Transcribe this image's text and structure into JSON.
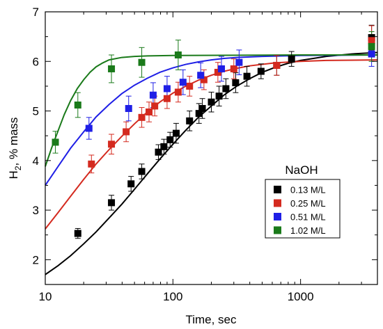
{
  "chart_data": {
    "type": "scatter",
    "xlabel": "Time, sec",
    "ylabel_main": "H",
    "ylabel_sub": "2",
    "ylabel_rest": ", % mass",
    "x_scale": "log",
    "xlim": [
      10,
      4000
    ],
    "ylim": [
      1.5,
      7
    ],
    "x_ticks": [
      10,
      100,
      1000
    ],
    "x_tick_labels": [
      "10",
      "100",
      "1000"
    ],
    "y_ticks": [
      2,
      3,
      4,
      5,
      6,
      7
    ],
    "y_tick_labels": [
      "2",
      "3",
      "4",
      "5",
      "6",
      "7"
    ],
    "grid": false,
    "legend": {
      "title": "NaOH",
      "placement": "bottom-right"
    },
    "series": [
      {
        "name": "0.13 M/L",
        "color": "#000000",
        "points": [
          [
            18,
            2.53,
            0.1
          ],
          [
            33,
            3.15,
            0.15
          ],
          [
            47,
            3.53,
            0.15
          ],
          [
            57,
            3.78,
            0.15
          ],
          [
            77,
            4.17,
            0.15
          ],
          [
            85,
            4.28,
            0.15
          ],
          [
            95,
            4.42,
            0.15
          ],
          [
            106,
            4.55,
            0.2
          ],
          [
            135,
            4.8,
            0.2
          ],
          [
            160,
            4.95,
            0.2
          ],
          [
            170,
            5.05,
            0.2
          ],
          [
            200,
            5.18,
            0.2
          ],
          [
            230,
            5.3,
            0.2
          ],
          [
            260,
            5.45,
            0.2
          ],
          [
            310,
            5.57,
            0.2
          ],
          [
            380,
            5.7,
            0.2
          ],
          [
            490,
            5.8,
            0.15
          ],
          [
            650,
            5.92,
            0.2
          ],
          [
            850,
            6.05,
            0.15
          ],
          [
            3600,
            6.48,
            0.25
          ]
        ],
        "fit": [
          [
            10,
            1.7
          ],
          [
            12.6,
            1.88
          ],
          [
            15.8,
            2.08
          ],
          [
            20,
            2.32
          ],
          [
            25,
            2.56
          ],
          [
            31.6,
            2.84
          ],
          [
            39.8,
            3.12
          ],
          [
            50,
            3.42
          ],
          [
            63,
            3.73
          ],
          [
            79,
            4.03
          ],
          [
            100,
            4.33
          ],
          [
            126,
            4.61
          ],
          [
            158,
            4.87
          ],
          [
            200,
            5.1
          ],
          [
            251,
            5.32
          ],
          [
            316,
            5.5
          ],
          [
            398,
            5.65
          ],
          [
            501,
            5.78
          ],
          [
            631,
            5.88
          ],
          [
            794,
            5.96
          ],
          [
            1000,
            6.02
          ],
          [
            1585,
            6.1
          ],
          [
            2512,
            6.15
          ],
          [
            4000,
            6.18
          ]
        ]
      },
      {
        "name": "0.25 M/L",
        "color": "#d42a1f",
        "points": [
          [
            23,
            3.93,
            0.18
          ],
          [
            33,
            4.33,
            0.2
          ],
          [
            43,
            4.58,
            0.2
          ],
          [
            57,
            4.87,
            0.2
          ],
          [
            65,
            4.98,
            0.2
          ],
          [
            72,
            5.1,
            0.2
          ],
          [
            90,
            5.25,
            0.2
          ],
          [
            110,
            5.38,
            0.2
          ],
          [
            135,
            5.5,
            0.2
          ],
          [
            175,
            5.63,
            0.2
          ],
          [
            225,
            5.78,
            0.2
          ],
          [
            300,
            5.85,
            0.2
          ],
          [
            650,
            5.92,
            0.2
          ],
          [
            3600,
            6.42,
            0.3
          ]
        ],
        "fit": [
          [
            10,
            2.62
          ],
          [
            12.6,
            2.95
          ],
          [
            15.8,
            3.28
          ],
          [
            20,
            3.62
          ],
          [
            25,
            3.93
          ],
          [
            31.6,
            4.22
          ],
          [
            39.8,
            4.49
          ],
          [
            50,
            4.74
          ],
          [
            63,
            4.98
          ],
          [
            79,
            5.18
          ],
          [
            100,
            5.36
          ],
          [
            126,
            5.5
          ],
          [
            158,
            5.62
          ],
          [
            200,
            5.72
          ],
          [
            251,
            5.8
          ],
          [
            316,
            5.86
          ],
          [
            398,
            5.91
          ],
          [
            501,
            5.94
          ],
          [
            631,
            5.97
          ],
          [
            1000,
            6.0
          ],
          [
            1585,
            6.02
          ],
          [
            4000,
            6.03
          ]
        ]
      },
      {
        "name": "0.51 M/L",
        "color": "#1f1fe6",
        "points": [
          [
            22,
            4.65,
            0.22
          ],
          [
            45,
            5.05,
            0.25
          ],
          [
            70,
            5.32,
            0.25
          ],
          [
            90,
            5.45,
            0.25
          ],
          [
            120,
            5.58,
            0.25
          ],
          [
            165,
            5.72,
            0.25
          ],
          [
            240,
            5.85,
            0.25
          ],
          [
            330,
            5.98,
            0.25
          ],
          [
            3600,
            6.15,
            0.25
          ]
        ],
        "fit": [
          [
            10,
            3.5
          ],
          [
            12.6,
            3.88
          ],
          [
            15.8,
            4.25
          ],
          [
            20,
            4.58
          ],
          [
            25,
            4.88
          ],
          [
            31.6,
            5.13
          ],
          [
            39.8,
            5.35
          ],
          [
            50,
            5.52
          ],
          [
            63,
            5.66
          ],
          [
            79,
            5.78
          ],
          [
            100,
            5.87
          ],
          [
            126,
            5.94
          ],
          [
            158,
            5.99
          ],
          [
            200,
            6.03
          ],
          [
            251,
            6.06
          ],
          [
            316,
            6.08
          ],
          [
            501,
            6.1
          ],
          [
            1000,
            6.12
          ],
          [
            4000,
            6.13
          ]
        ]
      },
      {
        "name": "1.02 M/L",
        "color": "#1a7a1a",
        "points": [
          [
            12,
            4.37,
            0.22
          ],
          [
            18,
            5.12,
            0.25
          ],
          [
            33,
            5.85,
            0.28
          ],
          [
            57,
            5.98,
            0.3
          ],
          [
            110,
            6.13,
            0.3
          ],
          [
            3600,
            6.3,
            0.3
          ]
        ],
        "fit": [
          [
            10,
            3.88
          ],
          [
            11.2,
            4.25
          ],
          [
            12.6,
            4.6
          ],
          [
            14.1,
            4.93
          ],
          [
            15.8,
            5.21
          ],
          [
            17.8,
            5.45
          ],
          [
            20,
            5.63
          ],
          [
            22.4,
            5.78
          ],
          [
            25,
            5.89
          ],
          [
            28.2,
            5.97
          ],
          [
            31.6,
            6.03
          ],
          [
            39.8,
            6.08
          ],
          [
            50,
            6.1
          ],
          [
            63,
            6.11
          ],
          [
            100,
            6.12
          ],
          [
            1000,
            6.13
          ],
          [
            4000,
            6.13
          ]
        ]
      }
    ]
  }
}
